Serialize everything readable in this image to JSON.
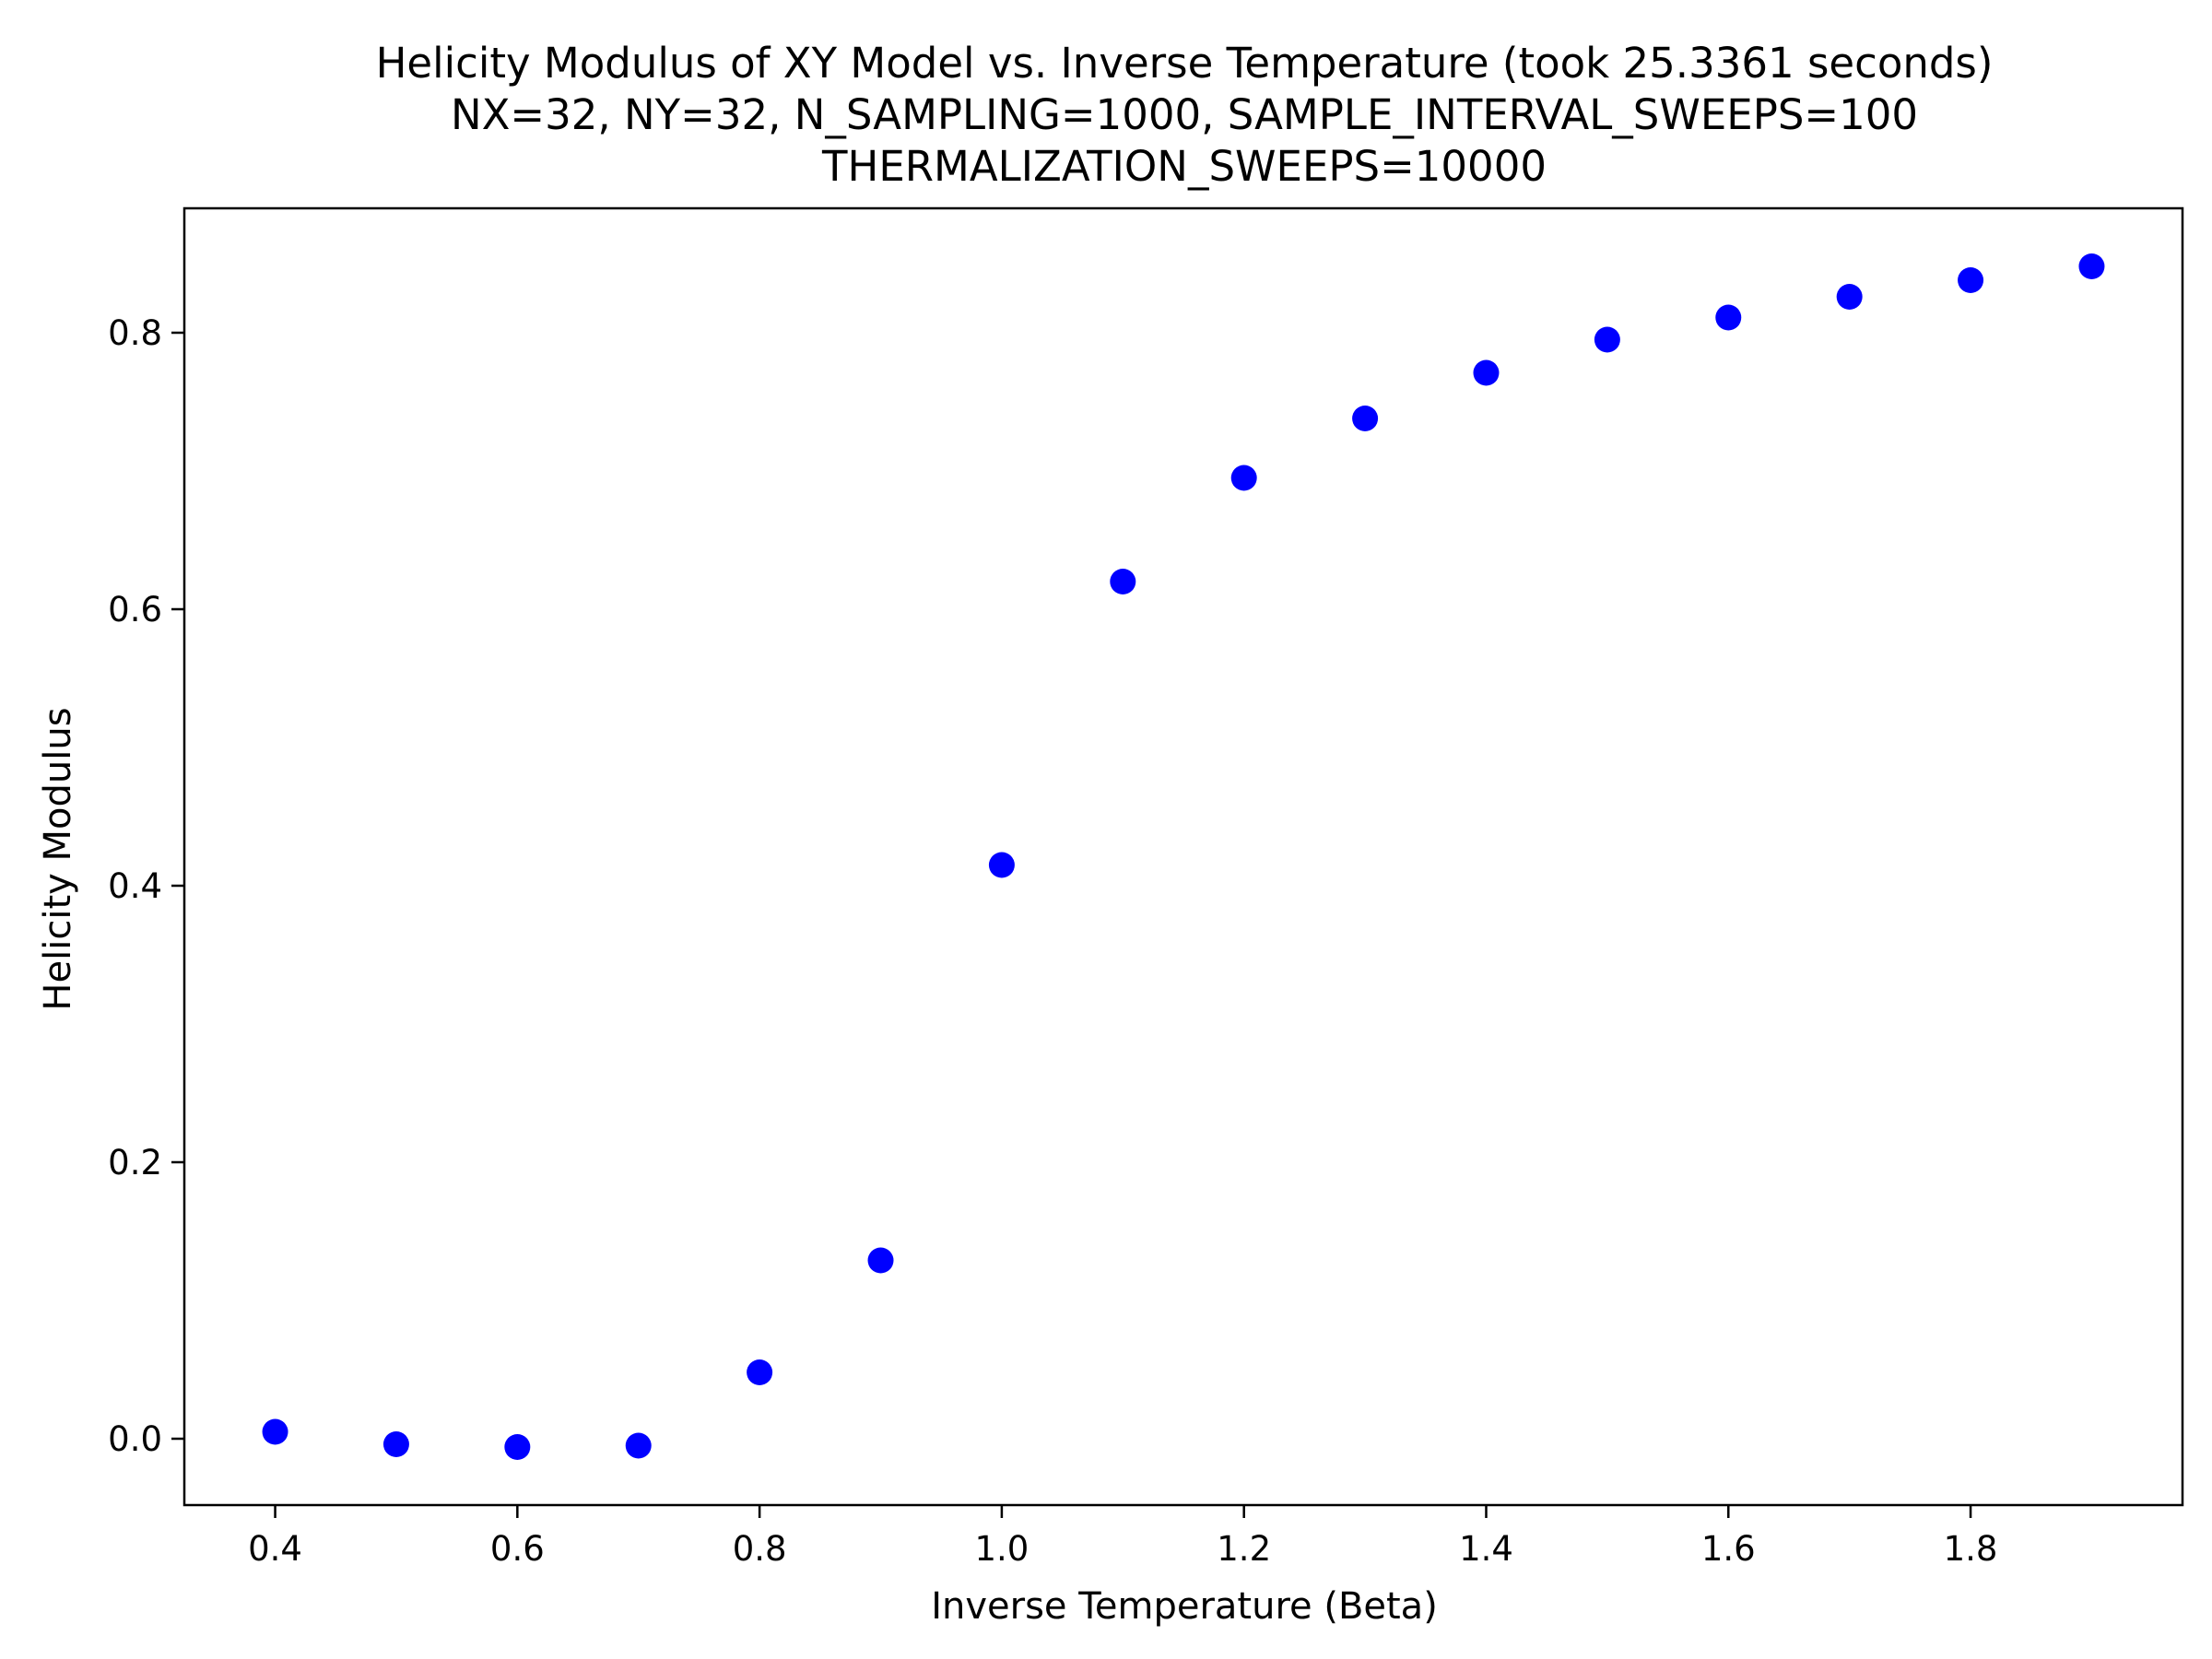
{
  "chart_data": {
    "type": "scatter",
    "title_lines": [
      "Helicity Modulus of XY Model vs. Inverse Temperature (took 25.3361 seconds)",
      "NX=32, NY=32, N_SAMPLING=1000, SAMPLE_INTERVAL_SWEEPS=100",
      "THERMALIZATION_SWEEPS=10000"
    ],
    "xlabel": "Inverse Temperature (Beta)",
    "ylabel": "Helicity Modulus",
    "xlim": [
      0.325,
      1.975
    ],
    "ylim": [
      -0.048,
      0.89
    ],
    "xticks": [
      0.4,
      0.6,
      0.8,
      1.0,
      1.2,
      1.4,
      1.6,
      1.8
    ],
    "xtick_labels": [
      "0.4",
      "0.6",
      "0.8",
      "1.0",
      "1.2",
      "1.4",
      "1.6",
      "1.8"
    ],
    "yticks": [
      0.0,
      0.2,
      0.4,
      0.6,
      0.8
    ],
    "ytick_labels": [
      "0.0",
      "0.2",
      "0.4",
      "0.6",
      "0.8"
    ],
    "grid": false,
    "legend": "none",
    "marker_color": "#0000ff",
    "series": [
      {
        "x": [
          0.4,
          0.5,
          0.6,
          0.7,
          0.8,
          0.9,
          1.0,
          1.1,
          1.2,
          1.3,
          1.4,
          1.5,
          1.6,
          1.7,
          1.8,
          1.9
        ],
        "values": [
          0.005,
          -0.004,
          -0.006,
          -0.005,
          0.048,
          0.129,
          0.415,
          0.62,
          0.695,
          0.738,
          0.771,
          0.795,
          0.811,
          0.826,
          0.838,
          0.848
        ]
      }
    ]
  }
}
